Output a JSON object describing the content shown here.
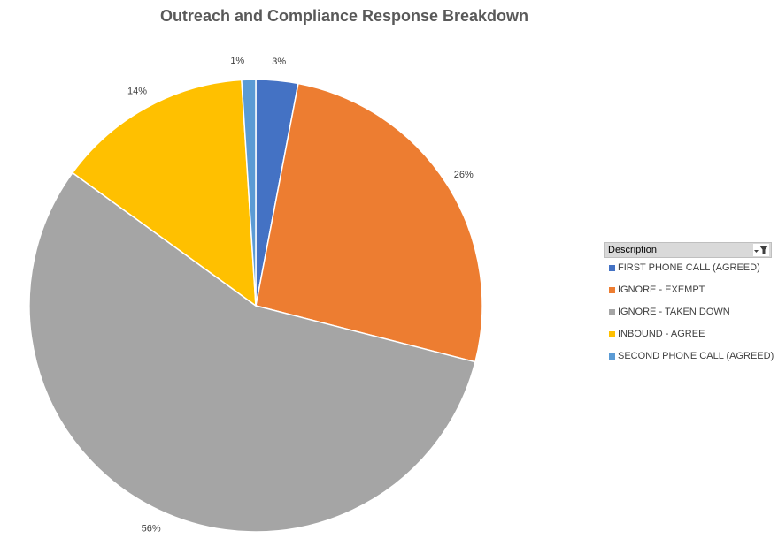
{
  "chart_data": {
    "type": "pie",
    "title": "Outreach and Compliance Response Breakdown",
    "legend_title": "Description",
    "legend_position": "right",
    "start_angle_deg": 0,
    "direction": "clockwise",
    "slices": [
      {
        "label": "FIRST PHONE CALL (AGREED)",
        "value": 3,
        "display": "3%",
        "color": "#4472C4"
      },
      {
        "label": "IGNORE - EXEMPT",
        "value": 26,
        "display": "26%",
        "color": "#ED7D31"
      },
      {
        "label": "IGNORE - TAKEN DOWN",
        "value": 56,
        "display": "56%",
        "color": "#A5A5A5"
      },
      {
        "label": "INBOUND - AGREE",
        "value": 14,
        "display": "14%",
        "color": "#FFC000"
      },
      {
        "label": "SECOND PHONE CALL (AGREED)",
        "value": 1,
        "display": "1%",
        "color": "#5B9BD5"
      }
    ]
  }
}
